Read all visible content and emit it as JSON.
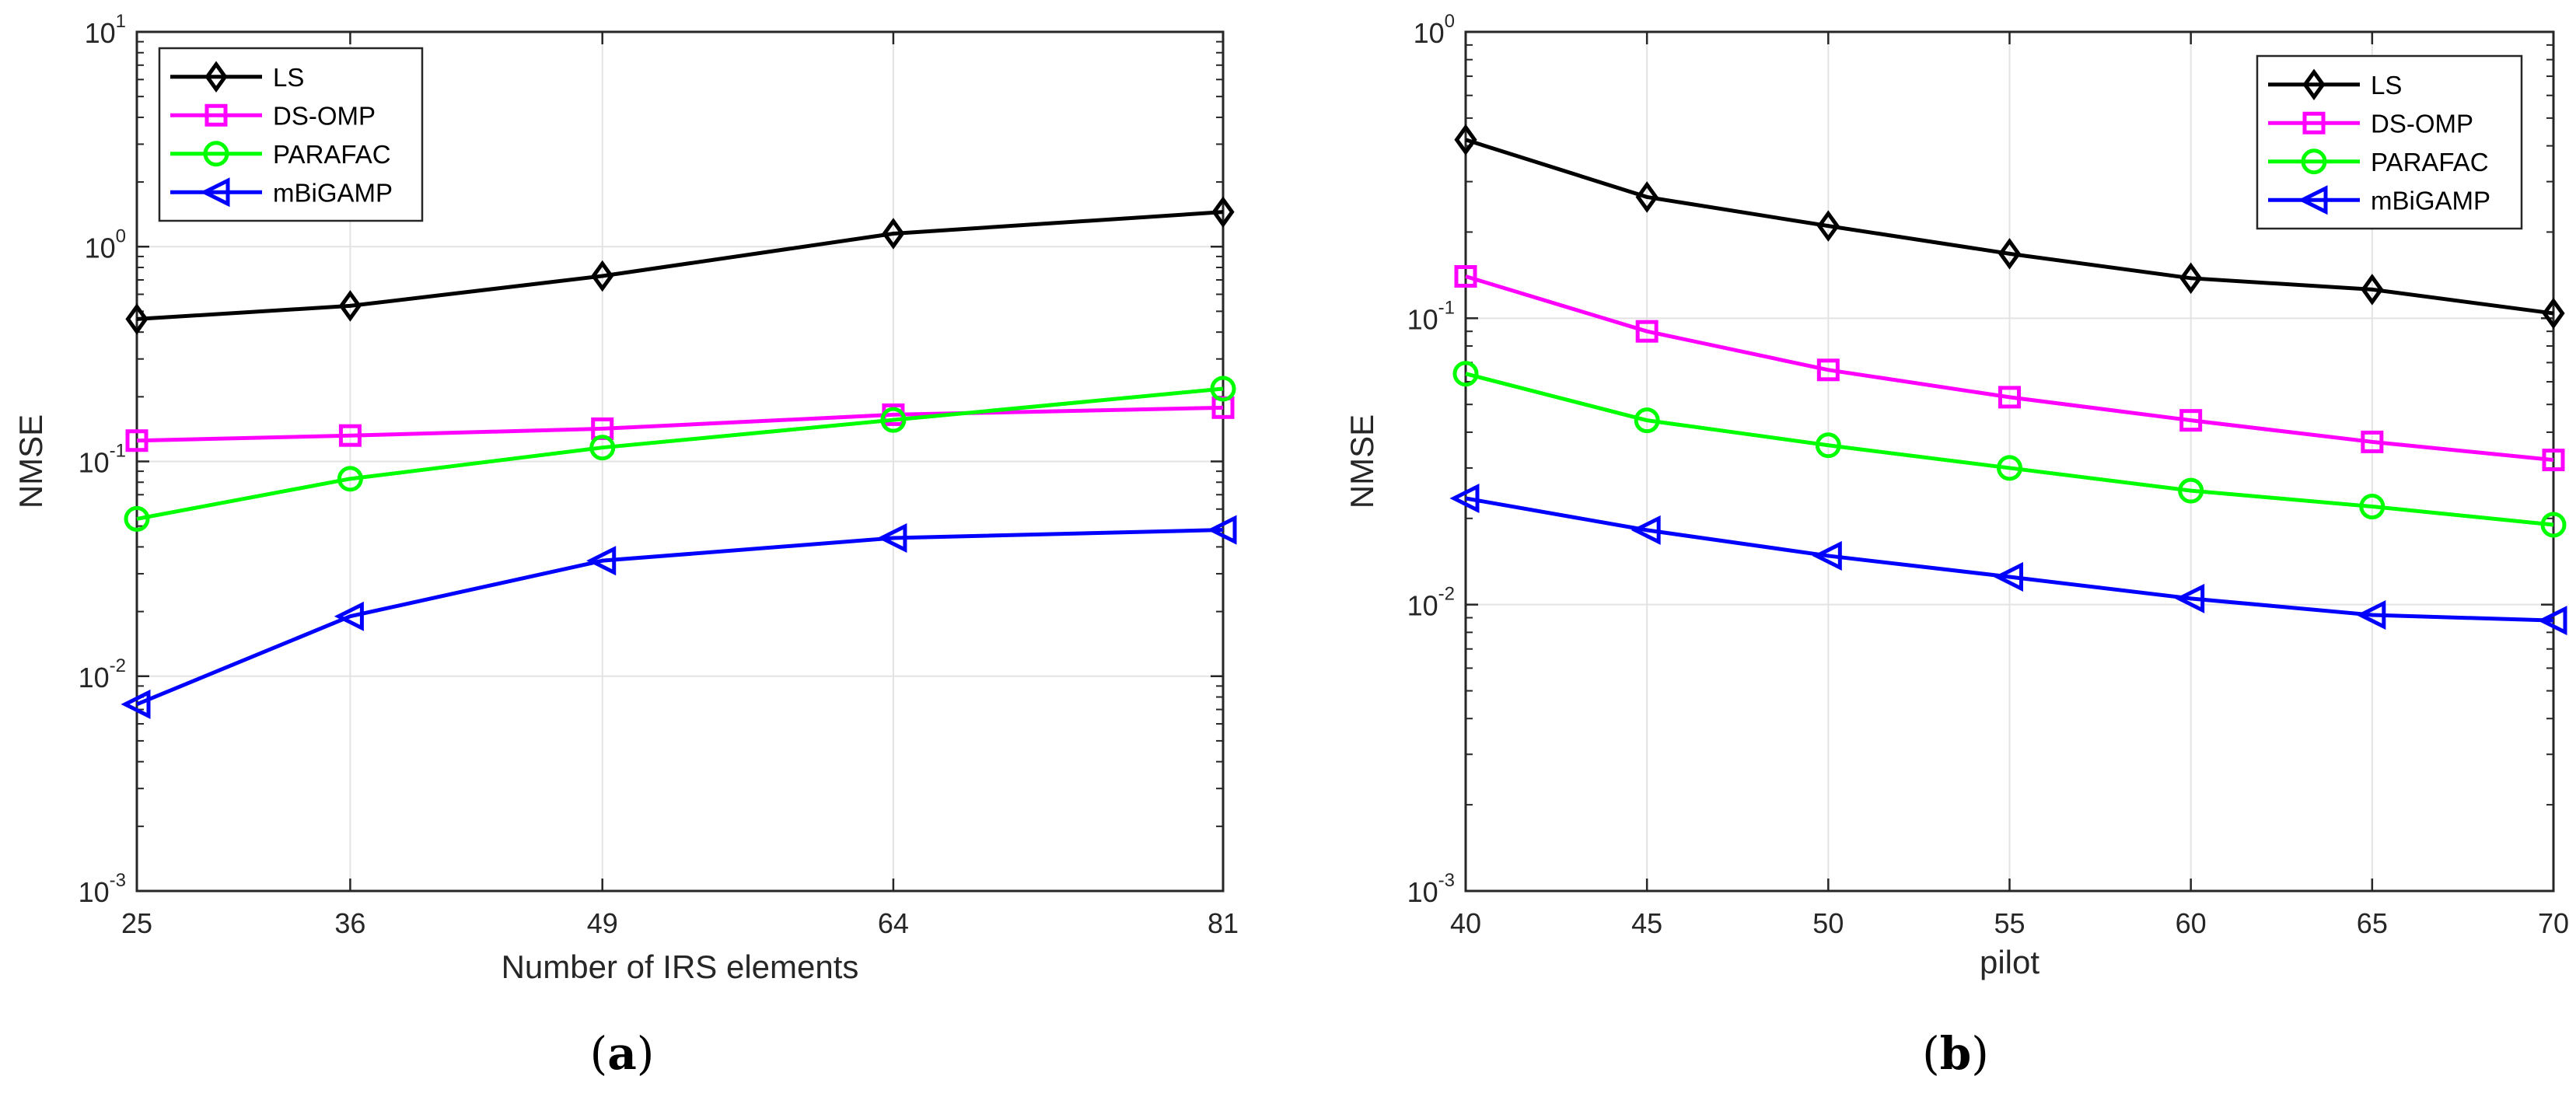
{
  "chart_data": [
    {
      "type": "line",
      "panel_label": "a",
      "panel_label_text": {
        "open": "(",
        "letter": "a",
        "close": ")"
      },
      "title": "",
      "xlabel": "Number of IRS elements",
      "ylabel": "NMSE",
      "yscale": "log",
      "x": [
        25,
        36,
        49,
        64,
        81
      ],
      "xlim": [
        25,
        81
      ],
      "xticks": [
        "25",
        "36",
        "49",
        "64",
        "81"
      ],
      "ylim": [
        0.001,
        10
      ],
      "yticks": [
        {
          "base": "10",
          "exp": "-3"
        },
        {
          "base": "10",
          "exp": "-2"
        },
        {
          "base": "10",
          "exp": "-1"
        },
        {
          "base": "10",
          "exp": "0"
        },
        {
          "base": "10",
          "exp": "1"
        }
      ],
      "grid": true,
      "legend_position": "top-left",
      "series": [
        {
          "name": "LS",
          "color": "#000000",
          "marker": "diamond",
          "values": [
            0.46,
            0.53,
            0.73,
            1.15,
            1.45
          ]
        },
        {
          "name": "DS-OMP",
          "color": "#ff00ff",
          "marker": "square",
          "values": [
            0.125,
            0.132,
            0.142,
            0.165,
            0.178
          ]
        },
        {
          "name": "PARAFAC",
          "color": "#00ff00",
          "marker": "circle",
          "values": [
            0.054,
            0.083,
            0.116,
            0.156,
            0.218
          ]
        },
        {
          "name": "mBiGAMP",
          "color": "#0000ff",
          "marker": "triangle-left",
          "values": [
            0.0074,
            0.019,
            0.0345,
            0.044,
            0.048
          ]
        }
      ]
    },
    {
      "type": "line",
      "panel_label": "b",
      "panel_label_text": {
        "open": "(",
        "letter": "b",
        "close": ")"
      },
      "title": "",
      "xlabel": "pilot",
      "ylabel": "NMSE",
      "yscale": "log",
      "x": [
        40,
        45,
        50,
        55,
        60,
        65,
        70
      ],
      "xlim": [
        40,
        70
      ],
      "xticks": [
        "40",
        "45",
        "50",
        "55",
        "60",
        "65",
        "70"
      ],
      "ylim": [
        0.001,
        1
      ],
      "yticks": [
        {
          "base": "10",
          "exp": "-3"
        },
        {
          "base": "10",
          "exp": "-2"
        },
        {
          "base": "10",
          "exp": "-1"
        },
        {
          "base": "10",
          "exp": "0"
        }
      ],
      "grid": true,
      "legend_position": "top-right",
      "series": [
        {
          "name": "LS",
          "color": "#000000",
          "marker": "diamond",
          "values": [
            0.42,
            0.265,
            0.21,
            0.168,
            0.138,
            0.126,
            0.104
          ]
        },
        {
          "name": "DS-OMP",
          "color": "#ff00ff",
          "marker": "square",
          "values": [
            0.14,
            0.09,
            0.066,
            0.053,
            0.044,
            0.037,
            0.032
          ]
        },
        {
          "name": "PARAFAC",
          "color": "#00ff00",
          "marker": "circle",
          "values": [
            0.064,
            0.044,
            0.036,
            0.03,
            0.025,
            0.022,
            0.019
          ]
        },
        {
          "name": "mBiGAMP",
          "color": "#0000ff",
          "marker": "triangle-left",
          "values": [
            0.0235,
            0.0182,
            0.0148,
            0.0125,
            0.0105,
            0.0092,
            0.0088
          ]
        }
      ]
    }
  ]
}
